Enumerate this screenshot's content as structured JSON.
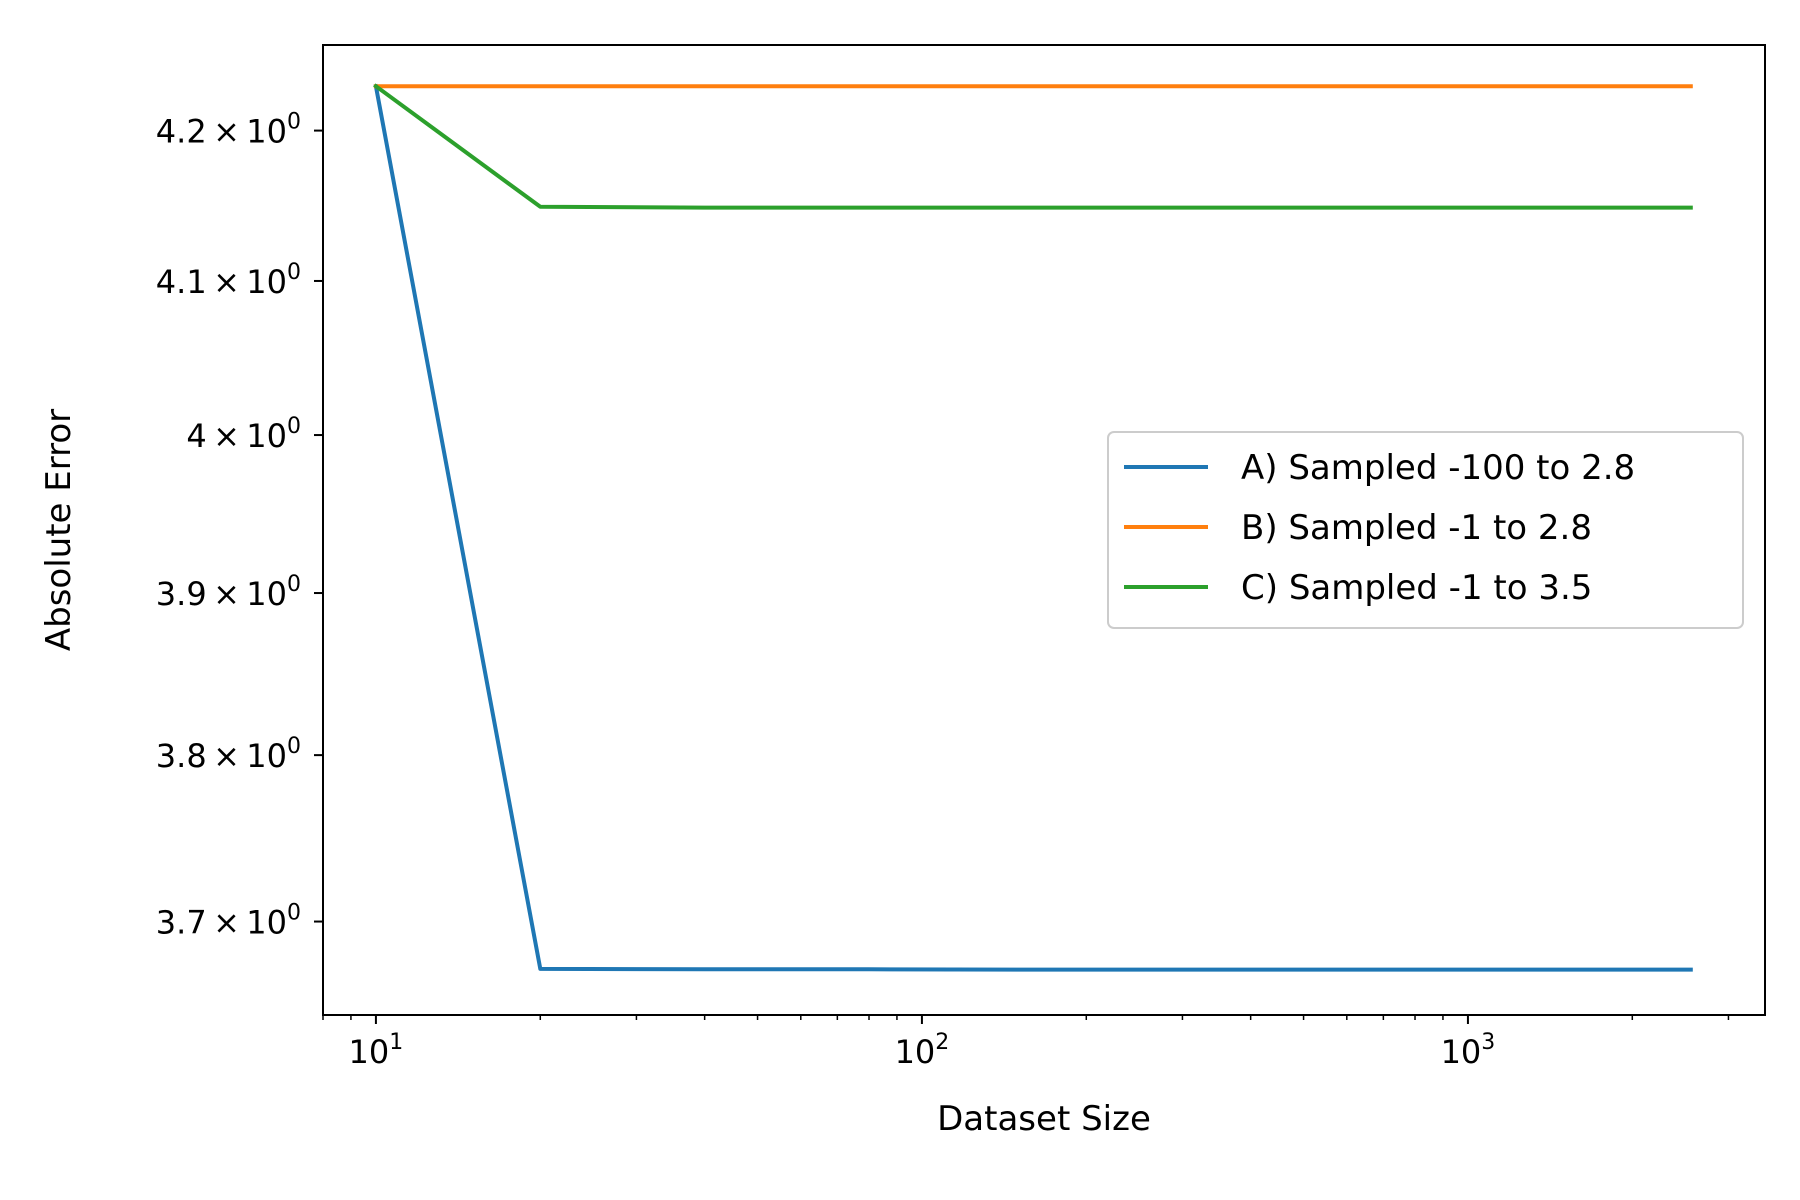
{
  "chart_data": {
    "type": "line",
    "title": "",
    "xlabel": "Dataset Size",
    "ylabel": "Absolute Error",
    "x_scale": "log",
    "y_scale": "log",
    "xlim": [
      8,
      3500
    ],
    "ylim": [
      3.645,
      4.258
    ],
    "grid": false,
    "legend_position": "center-right",
    "x_ticks": [
      {
        "value": 10,
        "base": "10",
        "exp": "1"
      },
      {
        "value": 100,
        "base": "10",
        "exp": "2"
      },
      {
        "value": 1000,
        "base": "10",
        "exp": "3"
      }
    ],
    "y_ticks": [
      {
        "value": 3.7,
        "mant": "3.7",
        "base": "10",
        "exp": "0"
      },
      {
        "value": 3.8,
        "mant": "3.8",
        "base": "10",
        "exp": "0"
      },
      {
        "value": 3.9,
        "mant": "3.9",
        "base": "10",
        "exp": "0"
      },
      {
        "value": 4.0,
        "mant": "4",
        "base": "10",
        "exp": "0"
      },
      {
        "value": 4.1,
        "mant": "4.1",
        "base": "10",
        "exp": "0"
      },
      {
        "value": 4.2,
        "mant": "4.2",
        "base": "10",
        "exp": "0"
      }
    ],
    "series": [
      {
        "name": "A) Sampled -100 to 2.8",
        "color": "#1f77b4",
        "x": [
          10,
          20,
          40,
          80,
          160,
          320,
          640,
          1280,
          2560
        ],
        "y": [
          4.23,
          3.672,
          3.6718,
          3.6718,
          3.6716,
          3.6716,
          3.6716,
          3.6716,
          3.6716
        ]
      },
      {
        "name": "B) Sampled -1 to 2.8",
        "color": "#ff7f0e",
        "x": [
          10,
          20,
          40,
          80,
          160,
          320,
          640,
          1280,
          2560
        ],
        "y": [
          4.23,
          4.23,
          4.23,
          4.23,
          4.23,
          4.23,
          4.23,
          4.23,
          4.23
        ]
      },
      {
        "name": "C) Sampled -1 to 3.5",
        "color": "#2ca02c",
        "x": [
          10,
          20,
          40,
          80,
          160,
          320,
          640,
          1280,
          2560
        ],
        "y": [
          4.23,
          4.149,
          4.1485,
          4.1485,
          4.1485,
          4.1485,
          4.1485,
          4.1485,
          4.1485
        ]
      }
    ]
  }
}
